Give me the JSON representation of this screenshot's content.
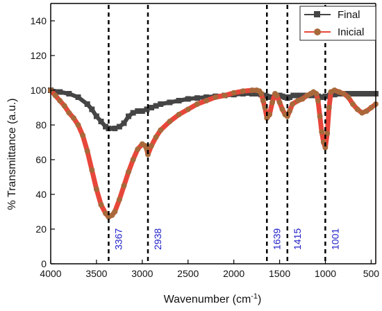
{
  "chart_data": {
    "type": "line",
    "title": "",
    "xlabel": "Wavenumber (cm",
    "xlabel_sup": "-1",
    "xlabel_close": ")",
    "ylabel": "% Transmittance (a.u.)",
    "xlim": [
      4000,
      450
    ],
    "ylim": [
      0,
      150
    ],
    "x_reversed": true,
    "xticks": [
      4000,
      3500,
      3000,
      2500,
      2000,
      1500,
      1000,
      500
    ],
    "yticks": [
      0,
      20,
      40,
      60,
      80,
      100,
      120,
      140
    ],
    "grid": false,
    "legend_position": "top-right",
    "series": [
      {
        "name": "Final",
        "color": "#454545",
        "marker": "square",
        "x": [
          4000,
          3900,
          3800,
          3700,
          3600,
          3550,
          3500,
          3450,
          3400,
          3367,
          3300,
          3250,
          3200,
          3150,
          3100,
          3050,
          3000,
          2950,
          2900,
          2850,
          2800,
          2700,
          2600,
          2500,
          2400,
          2300,
          2200,
          2100,
          2000,
          1900,
          1800,
          1750,
          1700,
          1660,
          1639,
          1610,
          1580,
          1550,
          1500,
          1470,
          1440,
          1415,
          1390,
          1350,
          1300,
          1250,
          1200,
          1150,
          1120,
          1080,
          1050,
          1030,
          1000,
          950,
          900,
          850,
          800,
          750,
          700,
          650,
          600,
          550,
          500,
          450
        ],
        "y": [
          100,
          99,
          98,
          96,
          92,
          89,
          85,
          82,
          79,
          78,
          78,
          79,
          81,
          85,
          87,
          88,
          88,
          89,
          90,
          91,
          92,
          93,
          94,
          95,
          95.5,
          96,
          96.5,
          97,
          97.5,
          98,
          98,
          98,
          97.5,
          97,
          96.5,
          96,
          96,
          96.5,
          97,
          96.5,
          96,
          95.5,
          96,
          97,
          97,
          97,
          97,
          97,
          97,
          96.5,
          96,
          96,
          96.5,
          97,
          97.5,
          98,
          98,
          98,
          98,
          98,
          98,
          98,
          98,
          98
        ]
      },
      {
        "name": "Inicial",
        "color": "#e8463a",
        "marker": "circle",
        "marker_color": "#a8693a",
        "x": [
          4000,
          3950,
          3900,
          3850,
          3800,
          3750,
          3700,
          3650,
          3600,
          3550,
          3500,
          3450,
          3400,
          3367,
          3330,
          3300,
          3250,
          3200,
          3150,
          3100,
          3050,
          3000,
          2970,
          2950,
          2938,
          2900,
          2850,
          2800,
          2700,
          2600,
          2500,
          2400,
          2300,
          2200,
          2100,
          2000,
          1900,
          1800,
          1750,
          1720,
          1700,
          1680,
          1660,
          1639,
          1610,
          1580,
          1550,
          1530,
          1500,
          1470,
          1440,
          1415,
          1390,
          1360,
          1300,
          1250,
          1200,
          1160,
          1130,
          1100,
          1080,
          1060,
          1040,
          1020,
          1001,
          980,
          960,
          940,
          900,
          850,
          800,
          750,
          700,
          650,
          600,
          550,
          500,
          450
        ],
        "y": [
          100,
          97,
          94,
          91,
          87,
          84,
          80,
          74,
          65,
          54,
          43,
          34,
          29,
          27,
          28,
          30,
          37,
          45,
          53,
          60,
          66,
          69,
          68,
          66,
          63,
          68,
          73,
          77,
          82,
          86,
          89,
          92,
          94,
          96,
          97,
          98.5,
          99.5,
          100,
          100,
          99.5,
          98,
          94,
          90,
          84,
          86,
          93,
          98,
          97,
          93,
          89,
          86,
          85,
          88,
          92,
          94,
          95,
          97,
          98,
          99,
          98,
          94,
          85,
          76,
          70,
          67,
          75,
          90,
          99,
          100,
          99,
          98,
          96,
          92,
          89,
          87,
          88,
          90,
          92
        ]
      }
    ],
    "annotations": [
      {
        "x": 3367,
        "label": "3367"
      },
      {
        "x": 2938,
        "label": "2938"
      },
      {
        "x": 1639,
        "label": "1639"
      },
      {
        "x": 1415,
        "label": "1415"
      },
      {
        "x": 1001,
        "label": "1001"
      }
    ]
  }
}
